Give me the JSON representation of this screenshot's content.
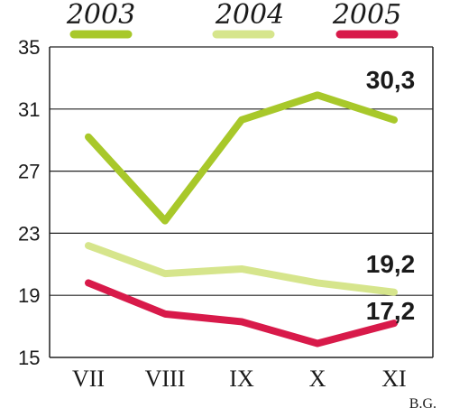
{
  "chart_data": {
    "type": "line",
    "categories": [
      "VII",
      "VIII",
      "IX",
      "X",
      "XI"
    ],
    "series": [
      {
        "name": "2003",
        "values": [
          29.2,
          23.8,
          30.3,
          31.9,
          30.3
        ],
        "color": "#a8c82a"
      },
      {
        "name": "2004",
        "values": [
          22.2,
          20.4,
          20.7,
          19.8,
          19.2
        ],
        "color": "#d6e58c"
      },
      {
        "name": "2005",
        "values": [
          19.8,
          17.8,
          17.3,
          15.9,
          17.2
        ],
        "color": "#d81a4a"
      }
    ],
    "yticks": [
      15,
      19,
      23,
      27,
      31,
      35
    ],
    "ylim": [
      15,
      35
    ],
    "end_labels": [
      "30,3",
      "19,2",
      "17,2"
    ],
    "legend_position": "top",
    "grid": "horizontal",
    "credit": "B.G."
  }
}
